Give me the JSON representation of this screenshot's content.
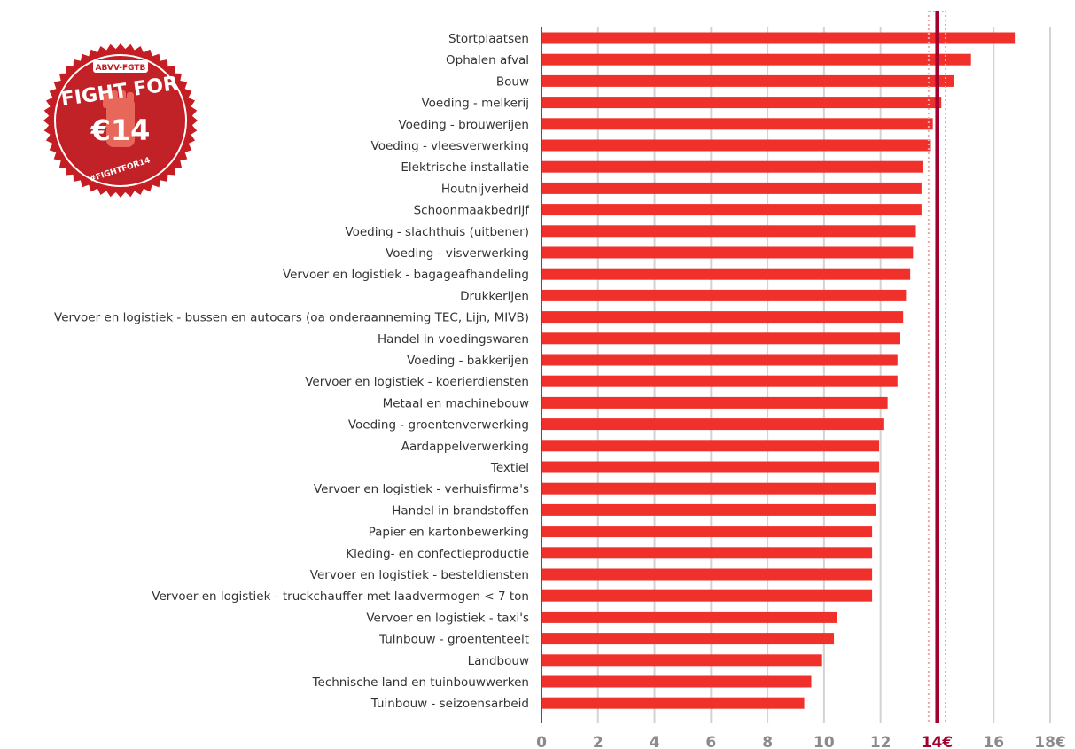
{
  "badge": {
    "org": "ABVV-FGTB",
    "slogan": "FIGHT FOR",
    "amount": "€14",
    "hashtag": "#FIGHTFOR14"
  },
  "colors": {
    "bar": "#f0312b",
    "target_line": "#a3002d",
    "grid": "#d3d3d3",
    "badge_bg": "#c41e24"
  },
  "chart_data": {
    "type": "bar",
    "orientation": "horizontal",
    "categories": [
      "Stortplaatsen",
      "Ophalen afval",
      "Bouw",
      "Voeding - melkerij",
      "Voeding - brouwerijen",
      "Voeding - vleesverwerking",
      "Elektrische installatie",
      "Houtnijverheid",
      "Schoonmaakbedrijf",
      "Voeding - slachthuis (uitbener)",
      "Voeding - visverwerking",
      "Vervoer en logistiek - bagageafhandeling",
      "Drukkerijen",
      "Vervoer en logistiek - bussen en autocars (oa onderaanneming TEC, Lijn, MIVB)",
      "Handel in voedingswaren",
      "Voeding - bakkerijen",
      "Vervoer en logistiek - koerierdiensten",
      "Metaal en machinebouw",
      "Voeding - groentenverwerking",
      "Aardappelverwerking",
      "Textiel",
      "Vervoer en logistiek - verhuisfirma's",
      "Handel in brandstoffen",
      "Papier en kartonbewerking",
      "Kleding- en confectieproductie",
      "Vervoer en logistiek - besteldiensten",
      "Vervoer en logistiek -  truckchauffer met laadvermogen < 7 ton",
      "Vervoer en logistiek - taxi's",
      "Tuinbouw - groententeelt",
      "Landbouw",
      "Technische land en tuinbouwwerken",
      "Tuinbouw - seizoensarbeid"
    ],
    "values": [
      16.75,
      15.2,
      14.6,
      14.15,
      13.85,
      13.75,
      13.5,
      13.45,
      13.45,
      13.25,
      13.15,
      13.05,
      12.9,
      12.8,
      12.7,
      12.6,
      12.6,
      12.25,
      12.1,
      11.95,
      11.95,
      11.85,
      11.85,
      11.7,
      11.7,
      11.7,
      11.7,
      10.45,
      10.35,
      9.9,
      9.55,
      9.3
    ],
    "xlim": [
      0,
      18
    ],
    "xticks": [
      {
        "value": 0,
        "label": "0"
      },
      {
        "value": 2,
        "label": "2"
      },
      {
        "value": 4,
        "label": "4"
      },
      {
        "value": 6,
        "label": "6"
      },
      {
        "value": 8,
        "label": "8"
      },
      {
        "value": 10,
        "label": "10"
      },
      {
        "value": 12,
        "label": "12"
      },
      {
        "value": 14,
        "label": "14€",
        "highlight": true
      },
      {
        "value": 16,
        "label": "16"
      },
      {
        "value": 18,
        "label": "18€"
      }
    ],
    "reference_line": {
      "value": 14,
      "band": [
        13.7,
        14.3
      ]
    },
    "grid": true,
    "title": "",
    "xlabel": "",
    "ylabel": ""
  }
}
